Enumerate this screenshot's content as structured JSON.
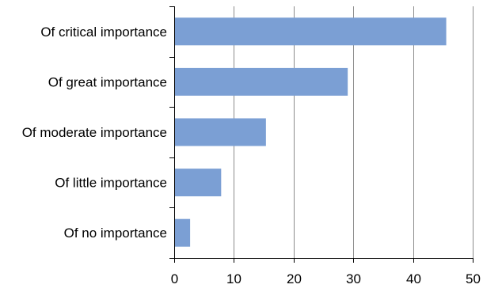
{
  "chart_data": {
    "type": "bar",
    "orientation": "horizontal",
    "categories": [
      "Of critical importance",
      "Of great importance",
      "Of moderate importance",
      "Of little importance",
      "Of no importance"
    ],
    "values": [
      45.5,
      29,
      15.3,
      7.8,
      2.6
    ],
    "xlim": [
      0,
      50
    ],
    "xticks": [
      0,
      10,
      20,
      30,
      40,
      50
    ],
    "xtick_labels": [
      "0",
      "10",
      "20",
      "30",
      "40",
      "50"
    ],
    "grid": true,
    "legend": "none",
    "bar_color": "#7b9fd4",
    "title": "",
    "xlabel": "",
    "ylabel": ""
  }
}
